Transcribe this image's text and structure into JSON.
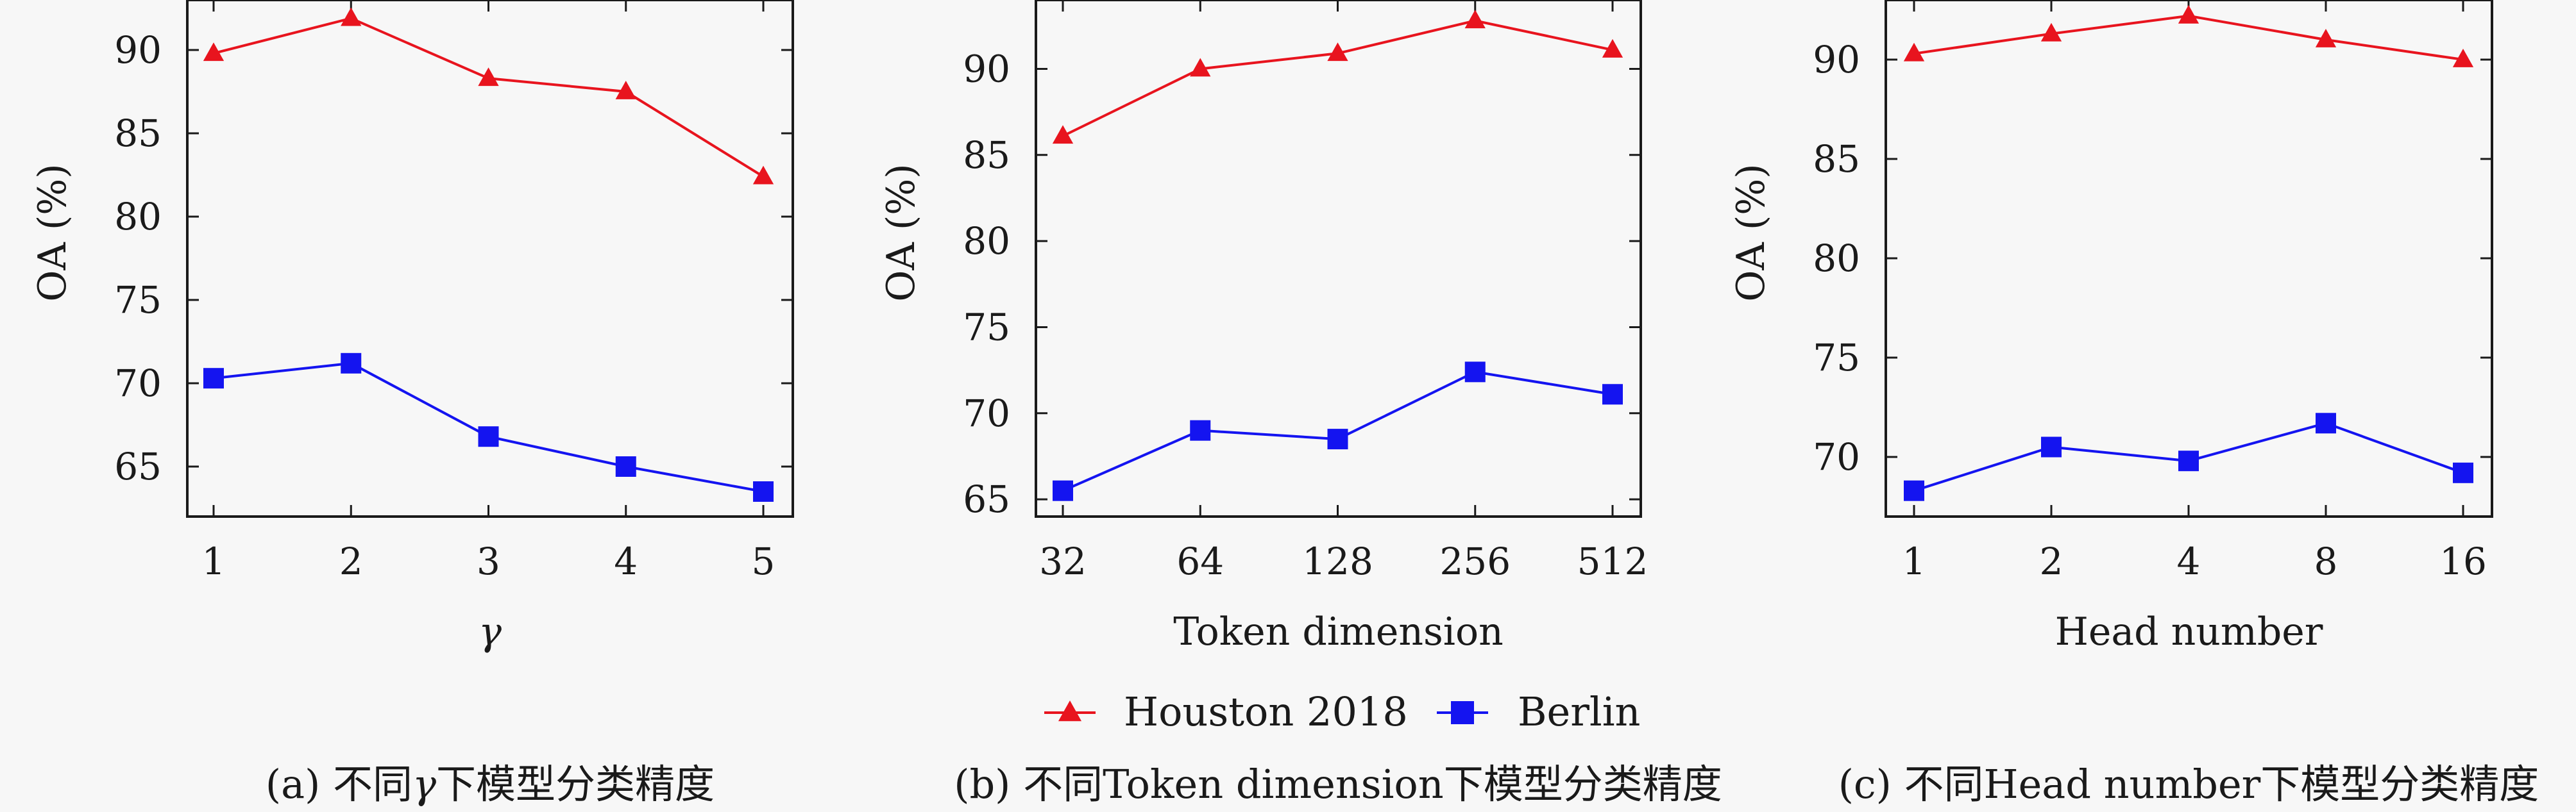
{
  "chart_data": [
    {
      "type": "line",
      "categories": [
        "1",
        "2",
        "3",
        "4",
        "5"
      ],
      "xlabel": "γ",
      "ylabel": "OA (%)",
      "ylim": [
        62,
        93
      ],
      "yticks": [
        65,
        70,
        75,
        80,
        85,
        90
      ],
      "series": [
        {
          "name": "Houston 2018",
          "values": [
            89.8,
            91.9,
            88.3,
            87.5,
            82.4
          ]
        },
        {
          "name": "Berlin",
          "values": [
            70.3,
            71.2,
            66.8,
            65.0,
            63.5
          ]
        }
      ],
      "caption_prefix": "(a) 不同",
      "caption_var": "γ",
      "caption_suffix": "下模型分类精度"
    },
    {
      "type": "line",
      "categories": [
        "32",
        "64",
        "128",
        "256",
        "512"
      ],
      "xlabel": "Token dimension",
      "ylabel": "OA (%)",
      "ylim": [
        64,
        94
      ],
      "yticks": [
        65,
        70,
        75,
        80,
        85,
        90
      ],
      "series": [
        {
          "name": "Houston 2018",
          "values": [
            86.1,
            90.0,
            90.9,
            92.8,
            91.1
          ]
        },
        {
          "name": "Berlin",
          "values": [
            65.5,
            69.0,
            68.5,
            72.4,
            71.1
          ]
        }
      ],
      "caption_prefix": "(b) 不同",
      "caption_var": "Token dimension",
      "caption_suffix": "下模型分类精度"
    },
    {
      "type": "line",
      "categories": [
        "1",
        "2",
        "4",
        "8",
        "16"
      ],
      "xlabel": "Head number",
      "ylabel": "OA (%)",
      "ylim": [
        67,
        93
      ],
      "yticks": [
        70,
        75,
        80,
        85,
        90
      ],
      "series": [
        {
          "name": "Houston 2018",
          "values": [
            90.3,
            91.3,
            92.2,
            91.0,
            90.0
          ]
        },
        {
          "name": "Berlin",
          "values": [
            68.3,
            70.5,
            69.8,
            71.7,
            69.2
          ]
        }
      ],
      "caption_prefix": "(c) 不同",
      "caption_var": "Head number",
      "caption_suffix": "下模型分类精度"
    }
  ],
  "legend": {
    "items": [
      {
        "name": "Houston 2018",
        "marker": "triangle",
        "color": "#e8141e"
      },
      {
        "name": "Berlin",
        "marker": "square",
        "color": "#1414f0"
      }
    ],
    "position": "bottom-center"
  },
  "colors": {
    "houston": "#e8141e",
    "berlin": "#1414f0",
    "axis": "#1a1a1a"
  }
}
